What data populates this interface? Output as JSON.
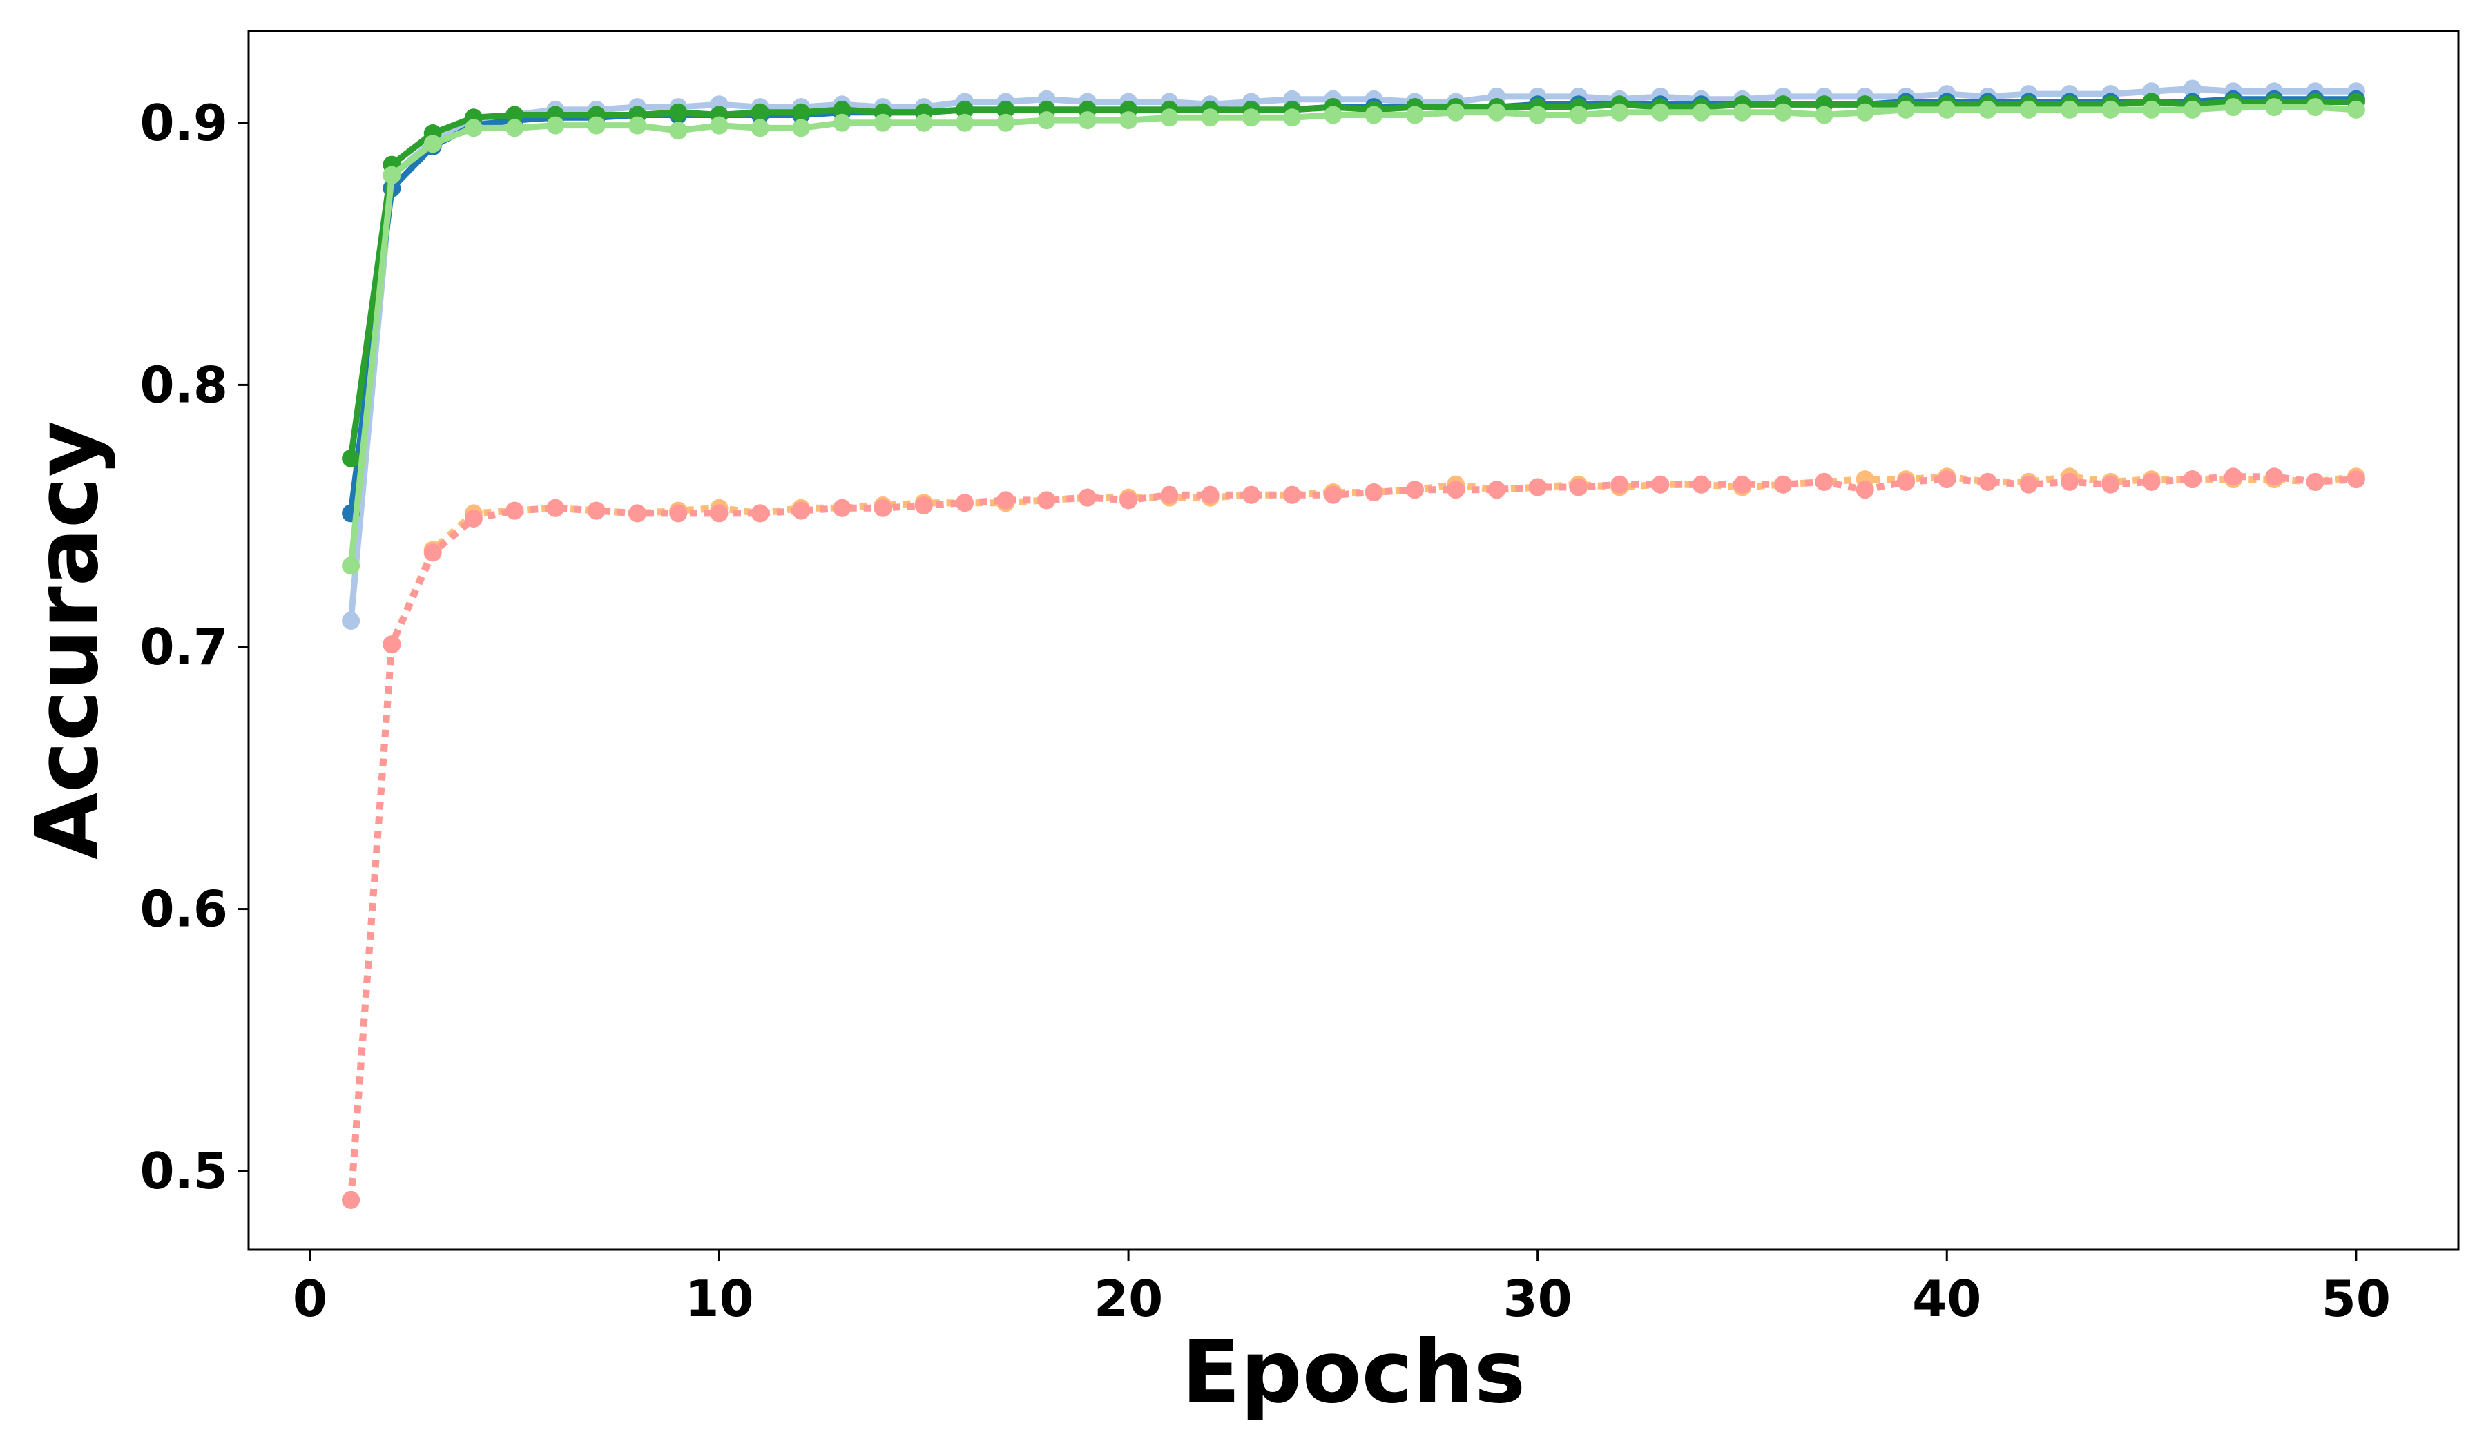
{
  "chart_data": {
    "type": "line",
    "title": "",
    "xlabel": "Epochs",
    "ylabel": "Accuracy",
    "xlim": [
      -1.5,
      52.5
    ],
    "ylim": [
      0.47,
      0.935
    ],
    "xticks": [
      0,
      10,
      20,
      30,
      40,
      50
    ],
    "yticks": [
      0.5,
      0.6,
      0.7,
      0.8,
      0.9
    ],
    "ytick_labels": [
      "0.5",
      "0.6",
      "0.7",
      "0.8",
      "0.9"
    ],
    "grid": false,
    "legend": "none",
    "x": [
      1,
      2,
      3,
      4,
      5,
      6,
      7,
      8,
      9,
      10,
      11,
      12,
      13,
      14,
      15,
      16,
      17,
      18,
      19,
      20,
      21,
      22,
      23,
      24,
      25,
      26,
      27,
      28,
      29,
      30,
      31,
      32,
      33,
      34,
      35,
      36,
      37,
      38,
      39,
      40,
      41,
      42,
      43,
      44,
      45,
      46,
      47,
      48,
      49,
      50
    ],
    "series": [
      {
        "color": "#aec7e8",
        "style": "solid",
        "values": [
          0.71,
          0.88,
          0.893,
          0.9,
          0.903,
          0.905,
          0.905,
          0.906,
          0.906,
          0.907,
          0.906,
          0.906,
          0.907,
          0.906,
          0.906,
          0.908,
          0.908,
          0.909,
          0.908,
          0.908,
          0.908,
          0.907,
          0.908,
          0.909,
          0.909,
          0.909,
          0.908,
          0.908,
          0.91,
          0.91,
          0.91,
          0.909,
          0.91,
          0.909,
          0.909,
          0.91,
          0.91,
          0.91,
          0.91,
          0.911,
          0.91,
          0.911,
          0.911,
          0.911,
          0.912,
          0.913,
          0.912,
          0.912,
          0.912,
          0.912
        ]
      },
      {
        "color": "#1f77b4",
        "style": "solid",
        "values": [
          0.751,
          0.875,
          0.891,
          0.899,
          0.901,
          0.902,
          0.902,
          0.903,
          0.903,
          0.903,
          0.903,
          0.903,
          0.904,
          0.904,
          0.904,
          0.905,
          0.905,
          0.905,
          0.905,
          0.905,
          0.905,
          0.905,
          0.905,
          0.905,
          0.906,
          0.906,
          0.906,
          0.906,
          0.906,
          0.907,
          0.907,
          0.907,
          0.907,
          0.907,
          0.907,
          0.907,
          0.907,
          0.907,
          0.908,
          0.908,
          0.908,
          0.908,
          0.908,
          0.908,
          0.908,
          0.908,
          0.909,
          0.909,
          0.909,
          0.909
        ]
      },
      {
        "color": "#2ca02c",
        "style": "solid",
        "values": [
          0.772,
          0.884,
          0.896,
          0.902,
          0.903,
          0.903,
          0.903,
          0.903,
          0.904,
          0.903,
          0.904,
          0.904,
          0.905,
          0.904,
          0.904,
          0.905,
          0.905,
          0.905,
          0.905,
          0.905,
          0.905,
          0.905,
          0.905,
          0.905,
          0.906,
          0.905,
          0.906,
          0.906,
          0.906,
          0.906,
          0.906,
          0.907,
          0.906,
          0.906,
          0.907,
          0.907,
          0.907,
          0.907,
          0.907,
          0.907,
          0.907,
          0.907,
          0.907,
          0.907,
          0.908,
          0.907,
          0.908,
          0.908,
          0.908,
          0.908
        ]
      },
      {
        "color": "#98df8a",
        "style": "solid",
        "values": [
          0.731,
          0.88,
          0.892,
          0.898,
          0.898,
          0.899,
          0.899,
          0.899,
          0.897,
          0.899,
          0.898,
          0.898,
          0.9,
          0.9,
          0.9,
          0.9,
          0.9,
          0.901,
          0.901,
          0.901,
          0.902,
          0.902,
          0.902,
          0.902,
          0.903,
          0.903,
          0.903,
          0.904,
          0.904,
          0.903,
          0.903,
          0.904,
          0.904,
          0.904,
          0.904,
          0.904,
          0.903,
          0.904,
          0.905,
          0.905,
          0.905,
          0.905,
          0.905,
          0.905,
          0.905,
          0.905,
          0.906,
          0.906,
          0.906,
          0.905
        ]
      },
      {
        "color": "#ffbb78",
        "style": "dotted",
        "values": [
          0.489,
          0.701,
          0.737,
          0.751,
          0.752,
          0.753,
          0.752,
          0.751,
          0.752,
          0.753,
          0.751,
          0.753,
          0.753,
          0.754,
          0.755,
          0.755,
          0.755,
          0.756,
          0.757,
          0.757,
          0.757,
          0.757,
          0.758,
          0.758,
          0.759,
          0.759,
          0.76,
          0.762,
          0.76,
          0.761,
          0.762,
          0.761,
          0.762,
          0.762,
          0.761,
          0.762,
          0.763,
          0.764,
          0.764,
          0.765,
          0.763,
          0.763,
          0.765,
          0.763,
          0.764,
          0.764,
          0.764,
          0.764,
          0.763,
          0.765
        ]
      },
      {
        "color": "#ff9896",
        "style": "dotted",
        "values": [
          0.489,
          0.701,
          0.736,
          0.749,
          0.752,
          0.753,
          0.752,
          0.751,
          0.751,
          0.751,
          0.751,
          0.752,
          0.753,
          0.753,
          0.754,
          0.755,
          0.756,
          0.756,
          0.757,
          0.756,
          0.758,
          0.758,
          0.758,
          0.758,
          0.758,
          0.759,
          0.76,
          0.76,
          0.76,
          0.761,
          0.761,
          0.762,
          0.762,
          0.762,
          0.762,
          0.762,
          0.763,
          0.76,
          0.763,
          0.764,
          0.763,
          0.762,
          0.763,
          0.762,
          0.763,
          0.764,
          0.765,
          0.765,
          0.763,
          0.764
        ]
      }
    ]
  }
}
